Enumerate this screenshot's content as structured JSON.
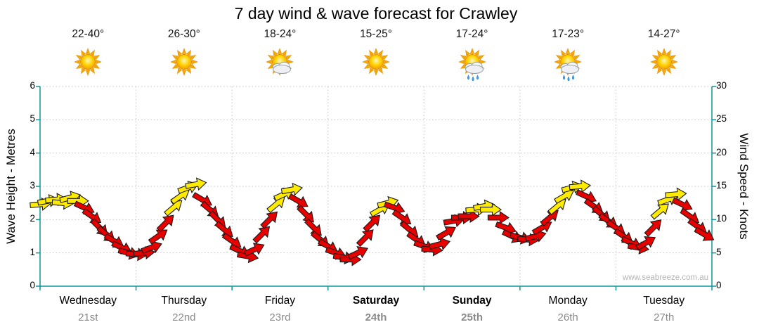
{
  "page_title": "7 day wind & wave forecast for Crawley",
  "watermark": "www.seabreeze.com.au",
  "axes": {
    "left_label": "Wave Height - Metres",
    "right_label": "Wind Speed - Knots",
    "left_ticks": [
      "0",
      "1",
      "2",
      "3",
      "4",
      "5",
      "6"
    ],
    "right_ticks": [
      "0",
      "5",
      "10",
      "15",
      "20",
      "25",
      "30"
    ]
  },
  "days": [
    {
      "name": "Wednesday",
      "date": "21st",
      "temp": "22-40°",
      "icon": "sunny-icon",
      "weekend": false
    },
    {
      "name": "Thursday",
      "date": "22nd",
      "temp": "26-30°",
      "icon": "sunny-icon",
      "weekend": false
    },
    {
      "name": "Friday",
      "date": "23rd",
      "temp": "18-24°",
      "icon": "partly-cloudy-icon",
      "weekend": false
    },
    {
      "name": "Saturday",
      "date": "24th",
      "temp": "15-25°",
      "icon": "sunny-icon",
      "weekend": true
    },
    {
      "name": "Sunday",
      "date": "25th",
      "temp": "17-24°",
      "icon": "partly-cloudy-shower-icon",
      "weekend": true
    },
    {
      "name": "Monday",
      "date": "26th",
      "temp": "17-23°",
      "icon": "partly-cloudy-shower-icon",
      "weekend": false
    },
    {
      "name": "Tuesday",
      "date": "27th",
      "temp": "14-27°",
      "icon": "sunny-icon",
      "weekend": false
    }
  ],
  "colors": {
    "axis": "#0e9598",
    "grid": "#c4c4c4",
    "arrow_red": "#e60000",
    "arrow_yellow": "#ffeb00",
    "arrow_outline": "#1a1a1a",
    "date_gray": "#8a8a8a",
    "watermark_gray": "#b5b5b5"
  },
  "chart_data": {
    "type": "scatter",
    "title": "7 day wind & wave forecast for Crawley",
    "x_axis": {
      "categories": [
        "Wednesday",
        "Thursday",
        "Friday",
        "Saturday",
        "Sunday",
        "Monday",
        "Tuesday"
      ],
      "range_days": [
        0,
        7
      ]
    },
    "y_left": {
      "label": "Wave Height - Metres",
      "lim": [
        0,
        6
      ],
      "unit": "m"
    },
    "y_right": {
      "label": "Wind Speed - Knots",
      "lim": [
        0,
        30
      ],
      "unit": "kn"
    },
    "grid": true,
    "legend": "none",
    "arrows_format": [
      "x_days",
      "wind_knots",
      "angle_deg_cw_from_east",
      "color_key(y=yellow,r=red)"
    ],
    "arrows": [
      [
        0.0,
        12.3,
        -5,
        "y"
      ],
      [
        0.08,
        12.8,
        -10,
        "y"
      ],
      [
        0.16,
        13.0,
        -5,
        "y"
      ],
      [
        0.23,
        12.5,
        5,
        "y"
      ],
      [
        0.31,
        13.3,
        -15,
        "y"
      ],
      [
        0.39,
        12.8,
        0,
        "y"
      ],
      [
        0.46,
        11.8,
        25,
        "r"
      ],
      [
        0.54,
        10.5,
        35,
        "r"
      ],
      [
        0.62,
        8.8,
        45,
        "r"
      ],
      [
        0.69,
        7.8,
        40,
        "r"
      ],
      [
        0.77,
        6.8,
        30,
        "r"
      ],
      [
        0.85,
        5.8,
        25,
        "r"
      ],
      [
        0.92,
        5.0,
        15,
        "r"
      ],
      [
        1.0,
        4.8,
        5,
        "r"
      ],
      [
        1.08,
        5.0,
        -5,
        "r"
      ],
      [
        1.16,
        5.8,
        -20,
        "r"
      ],
      [
        1.23,
        7.5,
        -35,
        "r"
      ],
      [
        1.31,
        9.5,
        -45,
        "r"
      ],
      [
        1.39,
        11.8,
        -40,
        "y"
      ],
      [
        1.46,
        13.5,
        -35,
        "y"
      ],
      [
        1.54,
        14.8,
        -20,
        "y"
      ],
      [
        1.62,
        15.3,
        -10,
        "y"
      ],
      [
        1.69,
        13.0,
        30,
        "r"
      ],
      [
        1.77,
        11.5,
        40,
        "r"
      ],
      [
        1.85,
        10.0,
        45,
        "r"
      ],
      [
        1.92,
        8.5,
        40,
        "r"
      ],
      [
        2.0,
        6.8,
        35,
        "r"
      ],
      [
        2.08,
        5.3,
        25,
        "r"
      ],
      [
        2.16,
        4.5,
        10,
        "r"
      ],
      [
        2.23,
        5.5,
        -25,
        "r"
      ],
      [
        2.31,
        7.8,
        -45,
        "r"
      ],
      [
        2.39,
        10.0,
        -45,
        "r"
      ],
      [
        2.46,
        12.3,
        -40,
        "y"
      ],
      [
        2.54,
        13.8,
        -25,
        "y"
      ],
      [
        2.62,
        14.5,
        -10,
        "y"
      ],
      [
        2.69,
        12.8,
        30,
        "r"
      ],
      [
        2.77,
        10.8,
        45,
        "r"
      ],
      [
        2.85,
        8.8,
        45,
        "r"
      ],
      [
        2.92,
        7.0,
        40,
        "r"
      ],
      [
        3.0,
        6.0,
        30,
        "r"
      ],
      [
        3.08,
        5.0,
        20,
        "r"
      ],
      [
        3.16,
        4.3,
        10,
        "r"
      ],
      [
        3.23,
        4.0,
        0,
        "r"
      ],
      [
        3.31,
        5.0,
        -25,
        "r"
      ],
      [
        3.39,
        7.3,
        -45,
        "r"
      ],
      [
        3.46,
        9.5,
        -45,
        "r"
      ],
      [
        3.54,
        11.5,
        -30,
        "y"
      ],
      [
        3.62,
        12.5,
        -15,
        "y"
      ],
      [
        3.69,
        11.8,
        20,
        "r"
      ],
      [
        3.77,
        10.3,
        35,
        "r"
      ],
      [
        3.85,
        8.5,
        40,
        "r"
      ],
      [
        3.92,
        7.0,
        35,
        "r"
      ],
      [
        4.0,
        6.0,
        20,
        "r"
      ],
      [
        4.08,
        5.5,
        5,
        "r"
      ],
      [
        4.16,
        6.3,
        -15,
        "r"
      ],
      [
        4.23,
        8.0,
        -30,
        "r"
      ],
      [
        4.31,
        9.8,
        -10,
        "r"
      ],
      [
        4.39,
        10.3,
        0,
        "r"
      ],
      [
        4.46,
        10.5,
        0,
        "r"
      ],
      [
        4.54,
        11.5,
        -5,
        "y"
      ],
      [
        4.62,
        12.0,
        -10,
        "y"
      ],
      [
        4.69,
        11.5,
        0,
        "y"
      ],
      [
        4.77,
        10.3,
        0,
        "r"
      ],
      [
        4.85,
        8.8,
        20,
        "r"
      ],
      [
        4.92,
        7.5,
        25,
        "r"
      ],
      [
        5.0,
        7.3,
        15,
        "r"
      ],
      [
        5.08,
        7.0,
        5,
        "r"
      ],
      [
        5.16,
        7.5,
        -15,
        "r"
      ],
      [
        5.23,
        8.8,
        -30,
        "r"
      ],
      [
        5.31,
        10.3,
        -40,
        "r"
      ],
      [
        5.39,
        12.0,
        -40,
        "y"
      ],
      [
        5.46,
        13.5,
        -30,
        "y"
      ],
      [
        5.54,
        14.8,
        -15,
        "y"
      ],
      [
        5.62,
        15.0,
        -5,
        "y"
      ],
      [
        5.69,
        13.5,
        25,
        "r"
      ],
      [
        5.77,
        12.0,
        35,
        "r"
      ],
      [
        5.85,
        10.8,
        40,
        "r"
      ],
      [
        5.92,
        9.8,
        35,
        "r"
      ],
      [
        6.0,
        8.8,
        35,
        "r"
      ],
      [
        6.08,
        7.5,
        35,
        "r"
      ],
      [
        6.16,
        6.5,
        25,
        "r"
      ],
      [
        6.23,
        5.8,
        10,
        "r"
      ],
      [
        6.31,
        6.5,
        -30,
        "r"
      ],
      [
        6.39,
        8.8,
        -45,
        "r"
      ],
      [
        6.46,
        11.3,
        -40,
        "y"
      ],
      [
        6.54,
        13.0,
        -20,
        "y"
      ],
      [
        6.62,
        13.8,
        -5,
        "y"
      ],
      [
        6.69,
        12.3,
        25,
        "r"
      ],
      [
        6.77,
        10.5,
        35,
        "r"
      ],
      [
        6.85,
        9.0,
        35,
        "r"
      ],
      [
        6.92,
        7.8,
        30,
        "r"
      ]
    ],
    "daily_summary": [
      {
        "day": "Wednesday",
        "temp": "22-40°",
        "sky": "sunny",
        "peak_wind_kn": 13.3
      },
      {
        "day": "Thursday",
        "temp": "26-30°",
        "sky": "sunny",
        "peak_wind_kn": 15.3
      },
      {
        "day": "Friday",
        "temp": "18-24°",
        "sky": "partly-cloudy",
        "peak_wind_kn": 14.5
      },
      {
        "day": "Saturday",
        "temp": "15-25°",
        "sky": "sunny",
        "peak_wind_kn": 12.5
      },
      {
        "day": "Sunday",
        "temp": "17-24°",
        "sky": "partly-cloudy-shower",
        "peak_wind_kn": 12.0
      },
      {
        "day": "Monday",
        "temp": "17-23°",
        "sky": "partly-cloudy-shower",
        "peak_wind_kn": 15.0
      },
      {
        "day": "Tuesday",
        "temp": "14-27°",
        "sky": "sunny",
        "peak_wind_kn": 13.8
      }
    ]
  }
}
